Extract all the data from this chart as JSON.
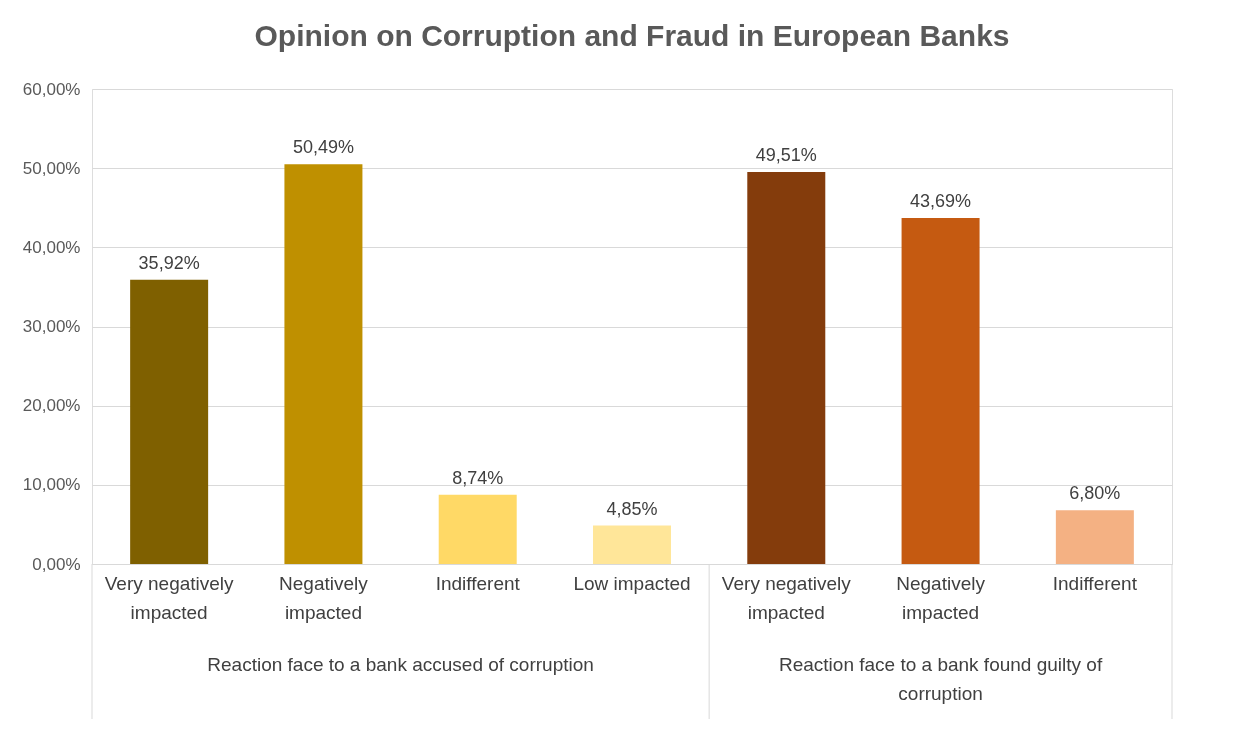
{
  "chart_data": {
    "type": "bar",
    "title": "Opinion on Corruption and Fraud in European Banks",
    "categories": [
      "Very negatively impacted",
      "Negatively impacted",
      "Indifferent",
      "Low impacted",
      "Very negatively impacted",
      "Negatively impacted",
      "Indifferent"
    ],
    "values": [
      35.92,
      50.49,
      8.74,
      4.85,
      49.51,
      43.69,
      6.8
    ],
    "colors": [
      "#7f6000",
      "#bf9000",
      "#ffd966",
      "#ffe699",
      "#843c0c",
      "#c55a11",
      "#f4b183"
    ],
    "value_labels": [
      "35,92%",
      "50,49%",
      "8,74%",
      "4,85%",
      "49,51%",
      "43,69%",
      "6,80%"
    ],
    "ylim": [
      0,
      60
    ],
    "yticks": [
      {
        "value": 0,
        "label": "0,00%"
      },
      {
        "value": 10,
        "label": "10,00%"
      },
      {
        "value": 20,
        "label": "20,00%"
      },
      {
        "value": 30,
        "label": "30,00%"
      },
      {
        "value": 40,
        "label": "40,00%"
      },
      {
        "value": 50,
        "label": "50,00%"
      },
      {
        "value": 60,
        "label": "60,00%"
      }
    ],
    "grid": "y",
    "annotations": [
      "Reaction face to a bank accused of corruption",
      "Reaction face to a bank found guilty of corruption"
    ]
  }
}
